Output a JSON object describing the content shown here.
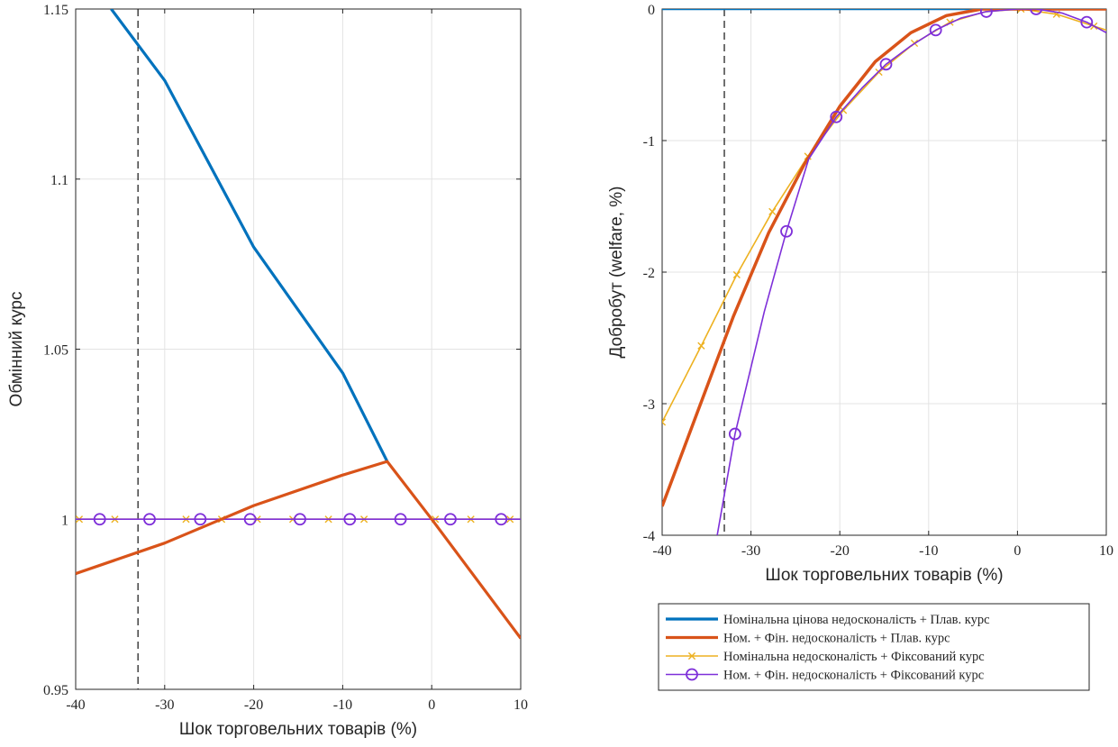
{
  "chart_data": [
    {
      "type": "line",
      "title": "",
      "xlabel": "Шок торговельних товарів (%)",
      "ylabel": "Обмінний курс",
      "xlim": [
        -40,
        10
      ],
      "ylim": [
        0.95,
        1.15
      ],
      "xticks": [
        -40,
        -30,
        -20,
        -10,
        0,
        10
      ],
      "xtick_labels": [
        "-40",
        "-30",
        "-20",
        "-10",
        "0",
        "10"
      ],
      "yticks": [
        0.95,
        1,
        1.05,
        1.1,
        1.15
      ],
      "ytick_labels": [
        "0.95",
        "1",
        "1.05",
        "1.1",
        "1.15"
      ],
      "grid": true,
      "vline_x": -33,
      "series": [
        {
          "name": "Номінальна цінова недосконалість + Плав. курс",
          "color": "#0072BD",
          "width": 3.2,
          "marker": "none",
          "points": [
            [
              -36,
              1.15
            ],
            [
              -30,
              1.129
            ],
            [
              -20,
              1.08
            ],
            [
              -10,
              1.043
            ],
            [
              -5,
              1.017
            ]
          ]
        },
        {
          "name": "Ном. + Фін. недосконалість + Плав. курс",
          "color": "#D95319",
          "width": 3.2,
          "marker": "none",
          "points": [
            [
              -40,
              0.984
            ],
            [
              -30,
              0.993
            ],
            [
              -20,
              1.004
            ],
            [
              -10,
              1.013
            ],
            [
              -5,
              1.017
            ],
            [
              0,
              1.0
            ],
            [
              10,
              0.965
            ]
          ]
        },
        {
          "name": "Номінальна недосконалість + Фіксований курс",
          "color": "#EDB120",
          "width": 1.6,
          "marker": "x",
          "points": [
            [
              -40,
              1
            ],
            [
              10,
              1
            ]
          ],
          "marker_x": [
            -39.6,
            -35.6,
            -27.6,
            -23.6,
            -19.6,
            -15.6,
            -11.6,
            -7.6,
            0.4,
            4.4,
            8.8
          ]
        },
        {
          "name": "Ном. + Фін. недосконалість + Фіксований курс",
          "color": "#7E2FD9",
          "width": 1.6,
          "marker": "o",
          "points": [
            [
              -40,
              1
            ],
            [
              10,
              1
            ]
          ],
          "marker_x": [
            -37.3,
            -31.7,
            -26.0,
            -20.4,
            -14.8,
            -9.2,
            -3.5,
            2.1,
            7.8
          ]
        }
      ]
    },
    {
      "type": "line",
      "title": "",
      "xlabel": "Шок торговельних товарів (%)",
      "ylabel": "Добробут (welfare, %)",
      "xlim": [
        -40,
        10
      ],
      "ylim": [
        -4,
        0
      ],
      "xticks": [
        -40,
        -30,
        -20,
        -10,
        0,
        10
      ],
      "xtick_labels": [
        "-40",
        "-30",
        "-20",
        "-10",
        "0",
        "10"
      ],
      "yticks": [
        -4,
        -3,
        -2,
        -1,
        0
      ],
      "ytick_labels": [
        "-4",
        "-3",
        "-2",
        "-1",
        "0"
      ],
      "grid": true,
      "vline_x": -33,
      "series": [
        {
          "name": "Номінальна цінова недосконалість + Плав. курс",
          "color": "#0072BD",
          "width": 2.5,
          "marker": "none",
          "points": [
            [
              -40,
              0
            ],
            [
              10,
              0
            ]
          ]
        },
        {
          "name": "Ном. + Фін. недосконалість + Плав. курс",
          "color": "#D95319",
          "width": 3.5,
          "marker": "none",
          "points": [
            [
              -40,
              -3.78
            ],
            [
              -36,
              -3.06
            ],
            [
              -32,
              -2.34
            ],
            [
              -28,
              -1.7
            ],
            [
              -24,
              -1.18
            ],
            [
              -20,
              -0.74
            ],
            [
              -16,
              -0.4
            ],
            [
              -12,
              -0.18
            ],
            [
              -8,
              -0.05
            ],
            [
              -4,
              0.0
            ],
            [
              0,
              0.0
            ],
            [
              5,
              0.0
            ],
            [
              10,
              0.0
            ]
          ]
        },
        {
          "name": "Номінальна недосконалість + Фіксований курс",
          "color": "#EDB120",
          "width": 1.6,
          "marker": "x",
          "points": [
            [
              -40,
              -3.14
            ],
            [
              -35.6,
              -2.56
            ],
            [
              -31.6,
              -2.02
            ],
            [
              -27.6,
              -1.54
            ],
            [
              -23.6,
              -1.12
            ],
            [
              -19.6,
              -0.77
            ],
            [
              -15.6,
              -0.48
            ],
            [
              -11.6,
              -0.26
            ],
            [
              -7.6,
              -0.1
            ],
            [
              -3.6,
              -0.02
            ],
            [
              0.4,
              0.0
            ],
            [
              4.4,
              -0.04
            ],
            [
              8.6,
              -0.13
            ],
            [
              10,
              -0.16
            ]
          ],
          "marker_x": [
            -40,
            -35.6,
            -31.6,
            -27.6,
            -23.6,
            -19.6,
            -15.6,
            -11.6,
            -7.6,
            0.4,
            4.4,
            8.6
          ]
        },
        {
          "name": "Ном. + Фін. недосконалість + Фіксований курс",
          "color": "#7E2FD9",
          "width": 1.6,
          "marker": "o",
          "points": [
            [
              -33.8,
              -4.0
            ],
            [
              -31.8,
              -3.23
            ],
            [
              -28.5,
              -2.3
            ],
            [
              -26.0,
              -1.69
            ],
            [
              -23.5,
              -1.14
            ],
            [
              -20.4,
              -0.82
            ],
            [
              -17.5,
              -0.6
            ],
            [
              -14.8,
              -0.42
            ],
            [
              -12,
              -0.28
            ],
            [
              -9.2,
              -0.16
            ],
            [
              -6.4,
              -0.07
            ],
            [
              -3.5,
              -0.02
            ],
            [
              0,
              0.0
            ],
            [
              2.1,
              0.0
            ],
            [
              5,
              -0.03
            ],
            [
              7.8,
              -0.1
            ],
            [
              10,
              -0.18
            ]
          ],
          "marker_x": [
            -31.8,
            -26.0,
            -20.4,
            -14.8,
            -9.2,
            -3.5,
            2.1,
            7.8
          ]
        }
      ]
    }
  ],
  "legend": {
    "items": [
      "Номінальна цінова недосконалість + Плав. курс",
      "Ном. + Фін. недосконалість + Плав. курс",
      "Номінальна недосконалість + Фіксований курс",
      "Ном. + Фін. недосконалість + Фіксований курс"
    ]
  }
}
